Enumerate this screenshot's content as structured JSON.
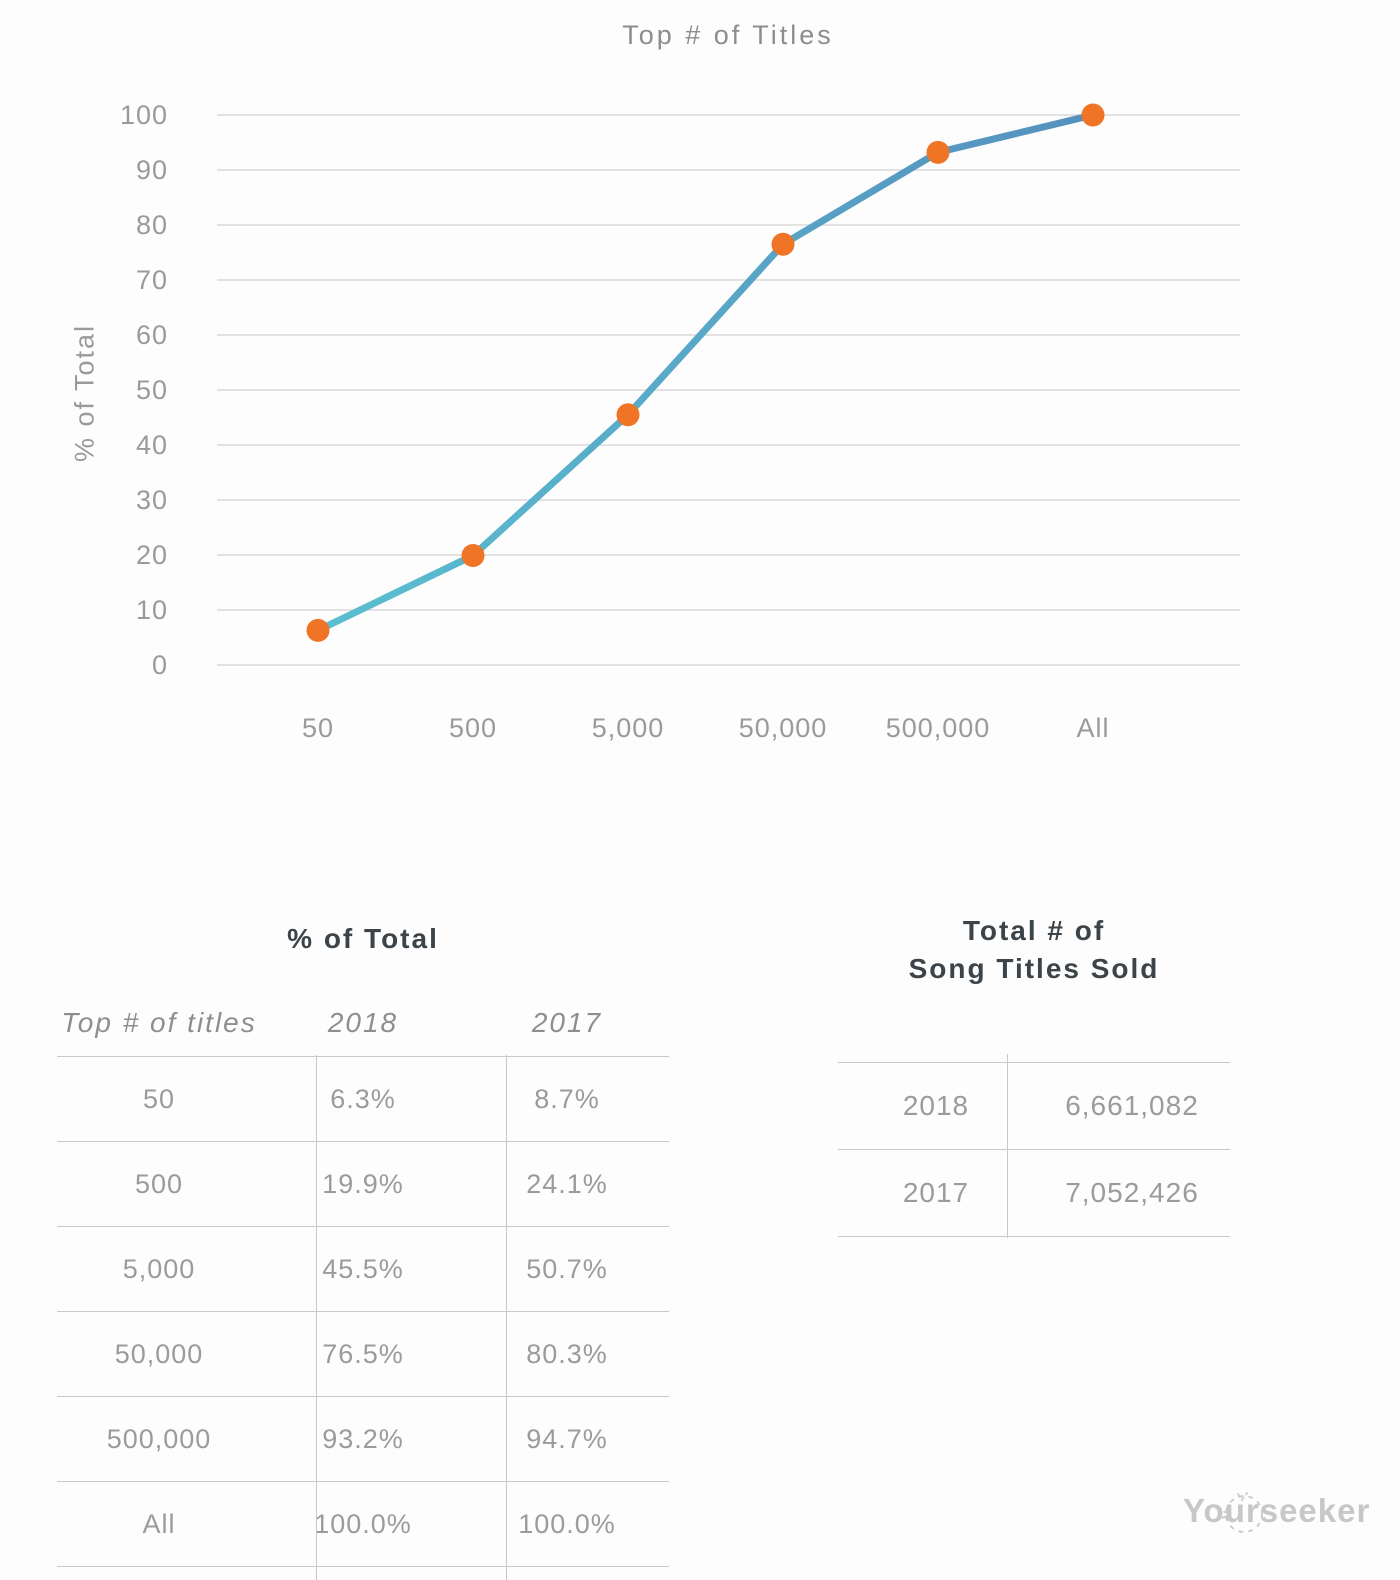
{
  "chart_data": {
    "type": "line",
    "title": "Top # of Titles",
    "xlabel": "",
    "ylabel": "% of Total",
    "categories": [
      "50",
      "500",
      "5,000",
      "50,000",
      "500,000",
      "All"
    ],
    "series": [
      {
        "name": "2018",
        "values": [
          6.3,
          19.9,
          45.5,
          76.5,
          93.2,
          100.0
        ]
      }
    ],
    "ylim": [
      0,
      100
    ],
    "yticks": [
      0,
      10,
      20,
      30,
      40,
      50,
      60,
      70,
      80,
      90,
      100
    ],
    "grid": true,
    "legend": "none",
    "line_color_start": "#5abfd0",
    "line_color_end": "#5590be",
    "marker_color": "#ef7425",
    "grid_color": "#dadada",
    "tick_color": "#9a9a9a"
  },
  "tables": {
    "percent_table": {
      "title": "% of Total",
      "columns": [
        "Top # of titles",
        "2018",
        "2017"
      ],
      "rows": [
        [
          "50",
          "6.3%",
          "8.7%"
        ],
        [
          "500",
          "19.9%",
          "24.1%"
        ],
        [
          "5,000",
          "45.5%",
          "50.7%"
        ],
        [
          "50,000",
          "76.5%",
          "80.3%"
        ],
        [
          "500,000",
          "93.2%",
          "94.7%"
        ],
        [
          "All",
          "100.0%",
          "100.0%"
        ]
      ]
    },
    "totals_table": {
      "title_line1": "Total # of",
      "title_line2": "Song Titles Sold",
      "rows": [
        [
          "2018",
          "6,661,082"
        ],
        [
          "2017",
          "7,052,426"
        ]
      ]
    }
  },
  "watermark": {
    "text": "Yourseeker"
  }
}
